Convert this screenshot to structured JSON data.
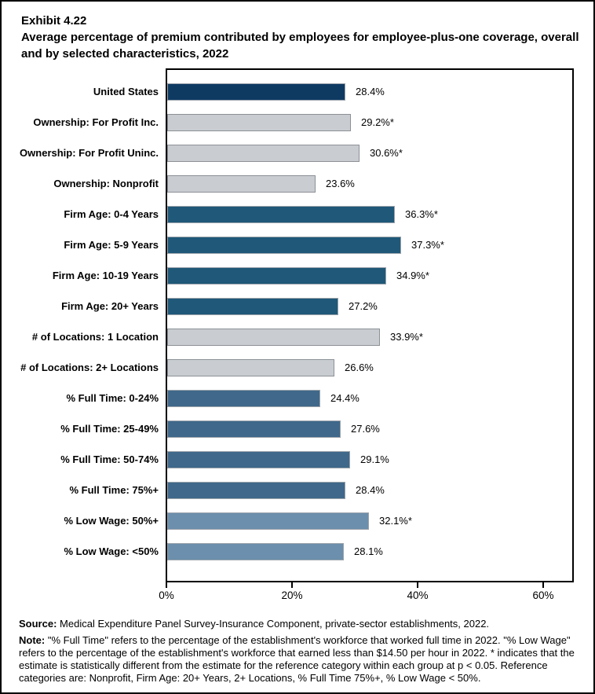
{
  "exhibit": {
    "number": "Exhibit 4.22",
    "title": "Average percentage of premium contributed by employees for employee-plus-one coverage, overall and by selected characteristics, 2022"
  },
  "chart_data": {
    "type": "bar",
    "orientation": "horizontal",
    "title": "Average percentage of premium contributed by employees for employee-plus-one coverage, overall and by selected characteristics, 2022",
    "xlabel": "",
    "ylabel": "",
    "xlim": [
      0,
      65
    ],
    "x_tick_values": [
      0,
      20,
      40,
      60
    ],
    "x_tick_labels": [
      "0%",
      "20%",
      "40%",
      "60%"
    ],
    "grid": false,
    "legend": "none",
    "categories": [
      "United States",
      "Ownership: For Profit Inc.",
      "Ownership: For Profit Uninc.",
      "Ownership: Nonprofit",
      "Firm Age: 0-4 Years",
      "Firm Age: 5-9 Years",
      "Firm Age: 10-19 Years",
      "Firm Age: 20+ Years",
      "# of Locations: 1 Location",
      "# of Locations: 2+ Locations",
      "% Full Time: 0-24%",
      "% Full Time: 25-49%",
      "% Full Time: 50-74%",
      "% Full Time: 75%+",
      "% Low Wage: 50%+",
      "% Low Wage: <50%"
    ],
    "values": [
      28.4,
      29.2,
      30.6,
      23.6,
      36.3,
      37.3,
      34.9,
      27.2,
      33.9,
      26.6,
      24.4,
      27.6,
      29.1,
      28.4,
      32.1,
      28.1
    ],
    "data_labels": [
      "28.4%",
      "29.2%*",
      "30.6%*",
      "23.6%",
      "36.3%*",
      "37.3%*",
      "34.9%*",
      "27.2%",
      "33.9%*",
      "26.6%",
      "24.4%",
      "27.6%",
      "29.1%",
      "28.4%",
      "32.1%*",
      "28.1%"
    ],
    "groups": [
      "us",
      "ownership",
      "ownership",
      "ownership",
      "firm_age",
      "firm_age",
      "firm_age",
      "firm_age",
      "locations",
      "locations",
      "full_time",
      "full_time",
      "full_time",
      "full_time",
      "low_wage",
      "low_wage"
    ],
    "group_colors": {
      "us": "#0E3A62",
      "ownership": "#C9CDD2",
      "firm_age": "#1F5878",
      "locations": "#C9CDD2",
      "full_time": "#3F688A",
      "low_wage": "#6B8FAC"
    },
    "group_border_colors": {
      "us": "#9BA3AB",
      "ownership": "#8C9196",
      "firm_age": "#9BA3AB",
      "locations": "#8C9196",
      "full_time": "#9BA3AB",
      "low_wage": "#9BA3AB"
    }
  },
  "footer": {
    "source_label": "Source:",
    "source_text": "Medical Expenditure Panel Survey-Insurance Component, private-sector establishments, 2022.",
    "note_label": "Note:",
    "note_text": "\"% Full Time\" refers to the percentage of the establishment's workforce that worked full time in 2022. \"% Low Wage\" refers to the percentage of the establishment's workforce that earned less than $14.50 per hour in 2022. * indicates that the estimate is statistically different from the estimate for the reference category within each group at p < 0.05.  Reference categories are: Nonprofit, Firm Age: 20+ Years, 2+ Locations, % Full Time 75%+, % Low Wage < 50%."
  }
}
